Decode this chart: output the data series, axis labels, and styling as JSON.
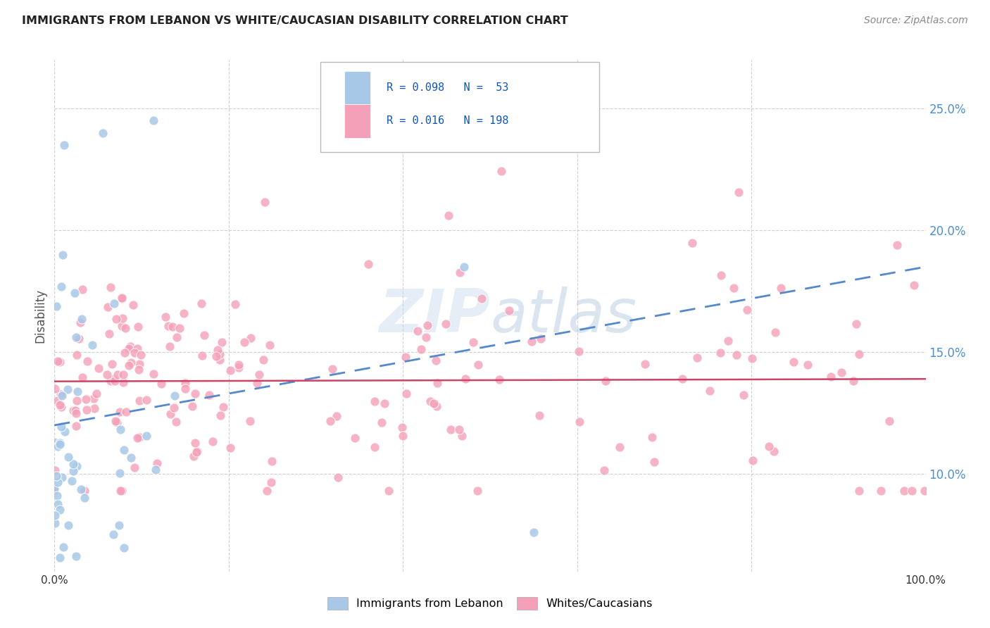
{
  "title": "IMMIGRANTS FROM LEBANON VS WHITE/CAUCASIAN DISABILITY CORRELATION CHART",
  "source": "Source: ZipAtlas.com",
  "ylabel": "Disability",
  "watermark": "ZIPatlas",
  "blue_color": "#a8c8e8",
  "pink_color": "#f4a0b8",
  "trend_blue_color": "#5588cc",
  "trend_pink_color": "#cc4466",
  "label1": "Immigrants from Lebanon",
  "label2": "Whites/Caucasians",
  "xlim": [
    0,
    1
  ],
  "ylim": [
    0.06,
    0.27
  ],
  "yticks": [
    0.1,
    0.15,
    0.2,
    0.25
  ],
  "ytick_labels": [
    "10.0%",
    "15.0%",
    "20.0%",
    "25.0%"
  ],
  "yaxis_color": "#4a90d9",
  "blue_intercept": 0.12,
  "blue_slope": 0.065,
  "pink_intercept": 0.138,
  "pink_slope": 0.001
}
